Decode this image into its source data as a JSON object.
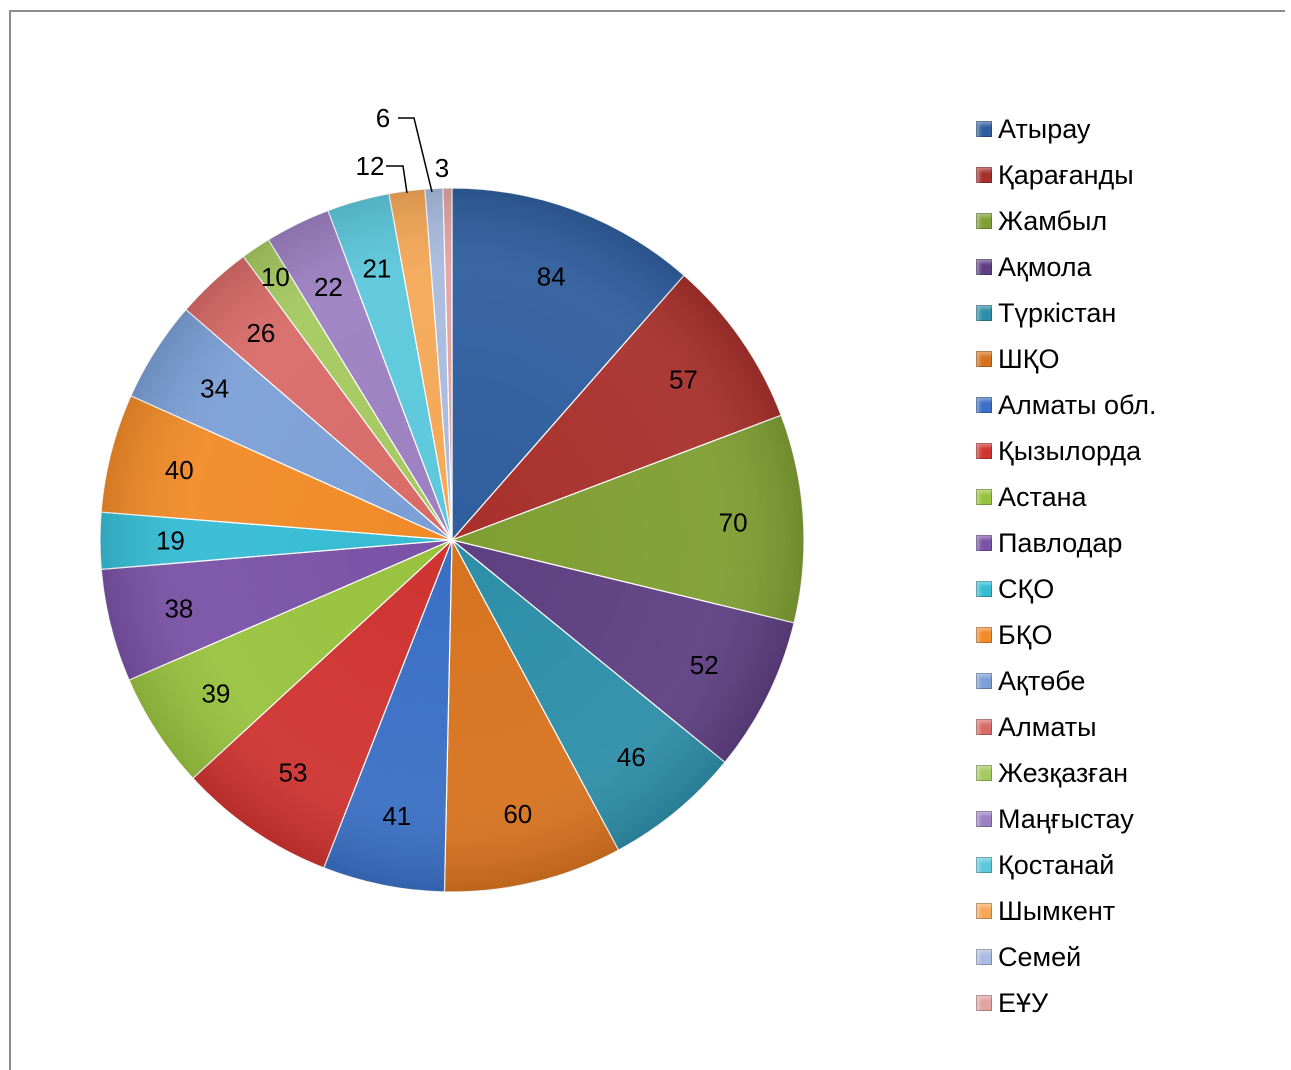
{
  "chart_data": {
    "type": "pie",
    "title": "",
    "legend_position": "right",
    "slices": [
      {
        "label": "Атырау",
        "value": 84,
        "color": "#2f5e9e"
      },
      {
        "label": "Қарағанды",
        "value": 57,
        "color": "#a8302c"
      },
      {
        "label": "Жамбыл",
        "value": 70,
        "color": "#7f9e32"
      },
      {
        "label": "Ақмола",
        "value": 52,
        "color": "#5e3f82"
      },
      {
        "label": "Түркістан",
        "value": 46,
        "color": "#2d8ea8"
      },
      {
        "label": "ШҚО",
        "value": 60,
        "color": "#d7731f"
      },
      {
        "label": "Алматы обл.",
        "value": 41,
        "color": "#3a6fc4"
      },
      {
        "label": "Қызылорда",
        "value": 53,
        "color": "#cf3330"
      },
      {
        "label": "Астана",
        "value": 39,
        "color": "#98c23e"
      },
      {
        "label": "Павлодар",
        "value": 38,
        "color": "#7a52a6"
      },
      {
        "label": "СҚО",
        "value": 19,
        "color": "#35bcd4"
      },
      {
        "label": "БҚО",
        "value": 40,
        "color": "#f18a27"
      },
      {
        "label": "Ақтөбе",
        "value": 34,
        "color": "#7b9fd6"
      },
      {
        "label": "Алматы",
        "value": 26,
        "color": "#d86b68"
      },
      {
        "label": "Жезқазған",
        "value": 10,
        "color": "#a5c95f"
      },
      {
        "label": "Маңғыстау",
        "value": 22,
        "color": "#9c80c2"
      },
      {
        "label": "Қостанай",
        "value": 21,
        "color": "#5cc8dc"
      },
      {
        "label": "Шымкент",
        "value": 12,
        "color": "#f5a857"
      },
      {
        "label": "Семей",
        "value": 6,
        "color": "#a9bbdf"
      },
      {
        "label": "ЕҰУ",
        "value": 3,
        "color": "#e2a3a1"
      }
    ]
  }
}
